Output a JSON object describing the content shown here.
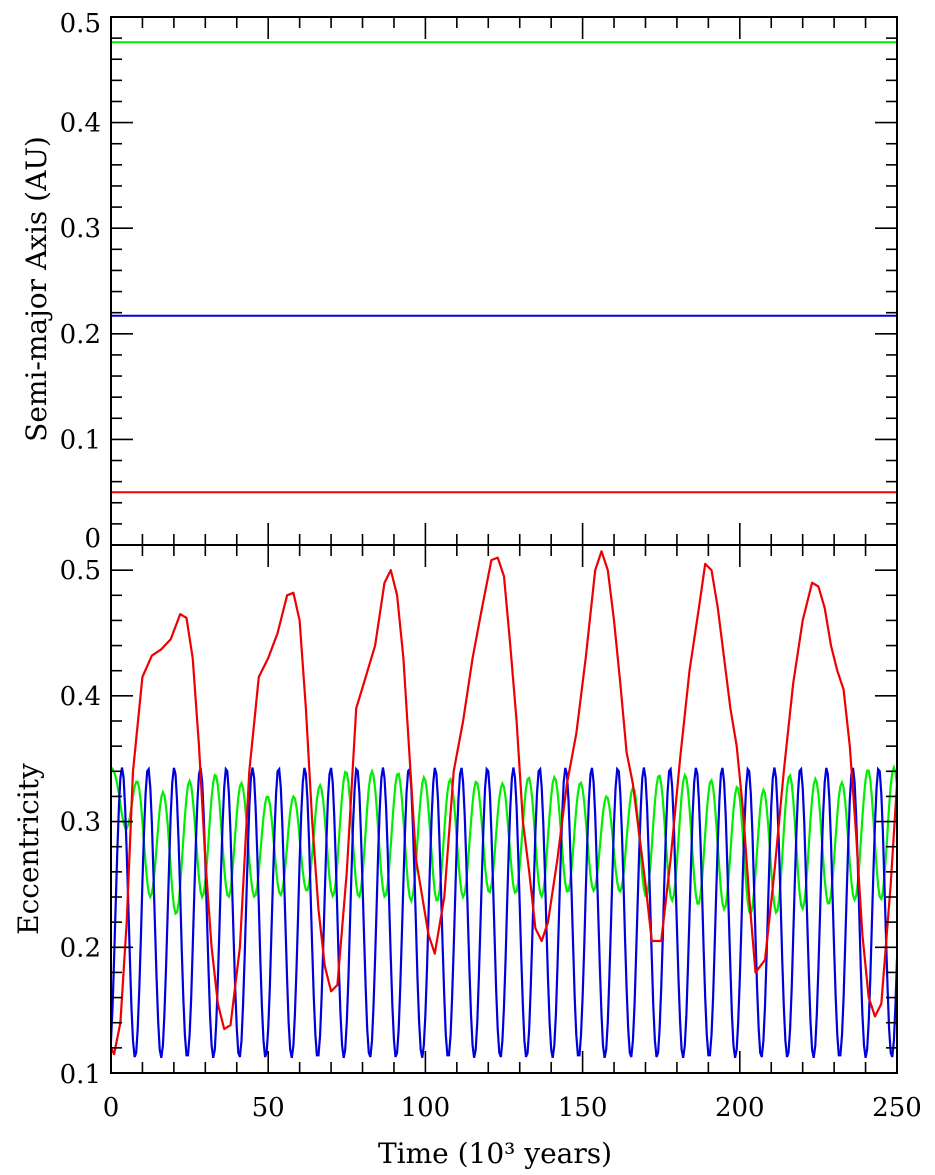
{
  "chart_data": [
    {
      "type": "line",
      "panel": "top",
      "title": "",
      "ylabel": "Semi-major Axis (AU)",
      "xlabel": "",
      "xlim": [
        0,
        250
      ],
      "ylim": [
        0,
        0.5
      ],
      "x_ticks_major": [
        0,
        50,
        100,
        150,
        200,
        250
      ],
      "y_tick_labels": [
        "0",
        "0.1",
        "0.2",
        "0.3",
        "0.4",
        "0.5"
      ],
      "y_ticks_major": [
        0,
        0.1,
        0.2,
        0.3,
        0.4,
        0.5
      ],
      "grid": false,
      "series": [
        {
          "color": "#00ee00",
          "x": [
            0,
            250
          ],
          "values": [
            0.476,
            0.476
          ]
        },
        {
          "color": "#0000dd",
          "x": [
            0,
            250
          ],
          "values": [
            0.217,
            0.217
          ]
        },
        {
          "color": "#ee0000",
          "x": [
            0,
            250
          ],
          "values": [
            0.05,
            0.05
          ]
        }
      ]
    },
    {
      "type": "line",
      "panel": "bottom",
      "title": "",
      "ylabel": "Eccentricity",
      "xlabel": "Time (10³ years)",
      "xlim": [
        0,
        250
      ],
      "ylim": [
        0.1,
        0.52
      ],
      "x_tick_labels": [
        "0",
        "50",
        "100",
        "150",
        "200",
        "250"
      ],
      "x_ticks_major": [
        0,
        50,
        100,
        150,
        200,
        250
      ],
      "y_tick_labels": [
        "0.1",
        "0.2",
        "0.3",
        "0.4",
        "0.5"
      ],
      "y_ticks_major": [
        0.1,
        0.2,
        0.3,
        0.4,
        0.5
      ],
      "grid": false,
      "series": [
        {
          "color": "#ee0000",
          "x": [
            0,
            1,
            3,
            5,
            7,
            10,
            13,
            16,
            19,
            22,
            24,
            26,
            28,
            30,
            32,
            34,
            36,
            38,
            41,
            44,
            47,
            50,
            53,
            56,
            58,
            60,
            62,
            64,
            66,
            68,
            70,
            72,
            75,
            78,
            81,
            84,
            87,
            89,
            91,
            93,
            95,
            97,
            99,
            101,
            103,
            106,
            109,
            112,
            115,
            118,
            121,
            123,
            125,
            127,
            129,
            131,
            133,
            135,
            137,
            139,
            142,
            145,
            148,
            151,
            154,
            156,
            158,
            160,
            162,
            164,
            166,
            168,
            170,
            172,
            175,
            178,
            181,
            184,
            187,
            189,
            191,
            193,
            195,
            197,
            199,
            201,
            203,
            205,
            208,
            211,
            214,
            217,
            220,
            223,
            225,
            227,
            229,
            231,
            233,
            235,
            237,
            239,
            241,
            243,
            245,
            248,
            250
          ],
          "values": [
            0.12,
            0.115,
            0.14,
            0.22,
            0.34,
            0.415,
            0.432,
            0.437,
            0.445,
            0.465,
            0.462,
            0.43,
            0.36,
            0.27,
            0.2,
            0.155,
            0.135,
            0.138,
            0.2,
            0.34,
            0.415,
            0.43,
            0.45,
            0.48,
            0.482,
            0.46,
            0.39,
            0.3,
            0.23,
            0.185,
            0.165,
            0.17,
            0.26,
            0.39,
            0.415,
            0.44,
            0.49,
            0.5,
            0.48,
            0.43,
            0.35,
            0.27,
            0.24,
            0.21,
            0.195,
            0.24,
            0.34,
            0.38,
            0.43,
            0.47,
            0.508,
            0.51,
            0.495,
            0.44,
            0.38,
            0.3,
            0.26,
            0.215,
            0.205,
            0.22,
            0.27,
            0.33,
            0.37,
            0.43,
            0.5,
            0.515,
            0.5,
            0.46,
            0.41,
            0.355,
            0.33,
            0.29,
            0.25,
            0.205,
            0.205,
            0.27,
            0.35,
            0.42,
            0.47,
            0.505,
            0.5,
            0.47,
            0.43,
            0.39,
            0.36,
            0.31,
            0.24,
            0.18,
            0.19,
            0.26,
            0.34,
            0.41,
            0.46,
            0.49,
            0.487,
            0.47,
            0.44,
            0.42,
            0.405,
            0.36,
            0.29,
            0.21,
            0.16,
            0.145,
            0.155,
            0.25,
            0.33
          ]
        },
        {
          "color": "#0000dd",
          "period": 8.3,
          "phase_x": 3.5,
          "min": 0.112,
          "max": 0.343,
          "x_start": 0,
          "x_end": 250
        },
        {
          "color": "#00ee00",
          "period": 8.3,
          "phase_x": 0,
          "x_start": 0,
          "x_end": 250,
          "envelope_x": [
            0,
            10,
            20,
            28,
            38,
            50,
            62,
            72,
            88,
            100,
            112,
            124,
            136,
            148,
            160,
            172,
            184,
            196,
            206,
            218,
            230,
            242,
            250
          ],
          "envelope_max": [
            0.343,
            0.33,
            0.32,
            0.34,
            0.335,
            0.32,
            0.32,
            0.34,
            0.34,
            0.335,
            0.333,
            0.33,
            0.337,
            0.333,
            0.317,
            0.337,
            0.337,
            0.33,
            0.323,
            0.34,
            0.328,
            0.343,
            0.343
          ],
          "envelope_min": [
            0.335,
            0.245,
            0.225,
            0.24,
            0.24,
            0.24,
            0.245,
            0.24,
            0.24,
            0.235,
            0.24,
            0.245,
            0.24,
            0.245,
            0.245,
            0.24,
            0.235,
            0.23,
            0.225,
            0.23,
            0.235,
            0.24,
            0.235
          ]
        }
      ]
    }
  ]
}
